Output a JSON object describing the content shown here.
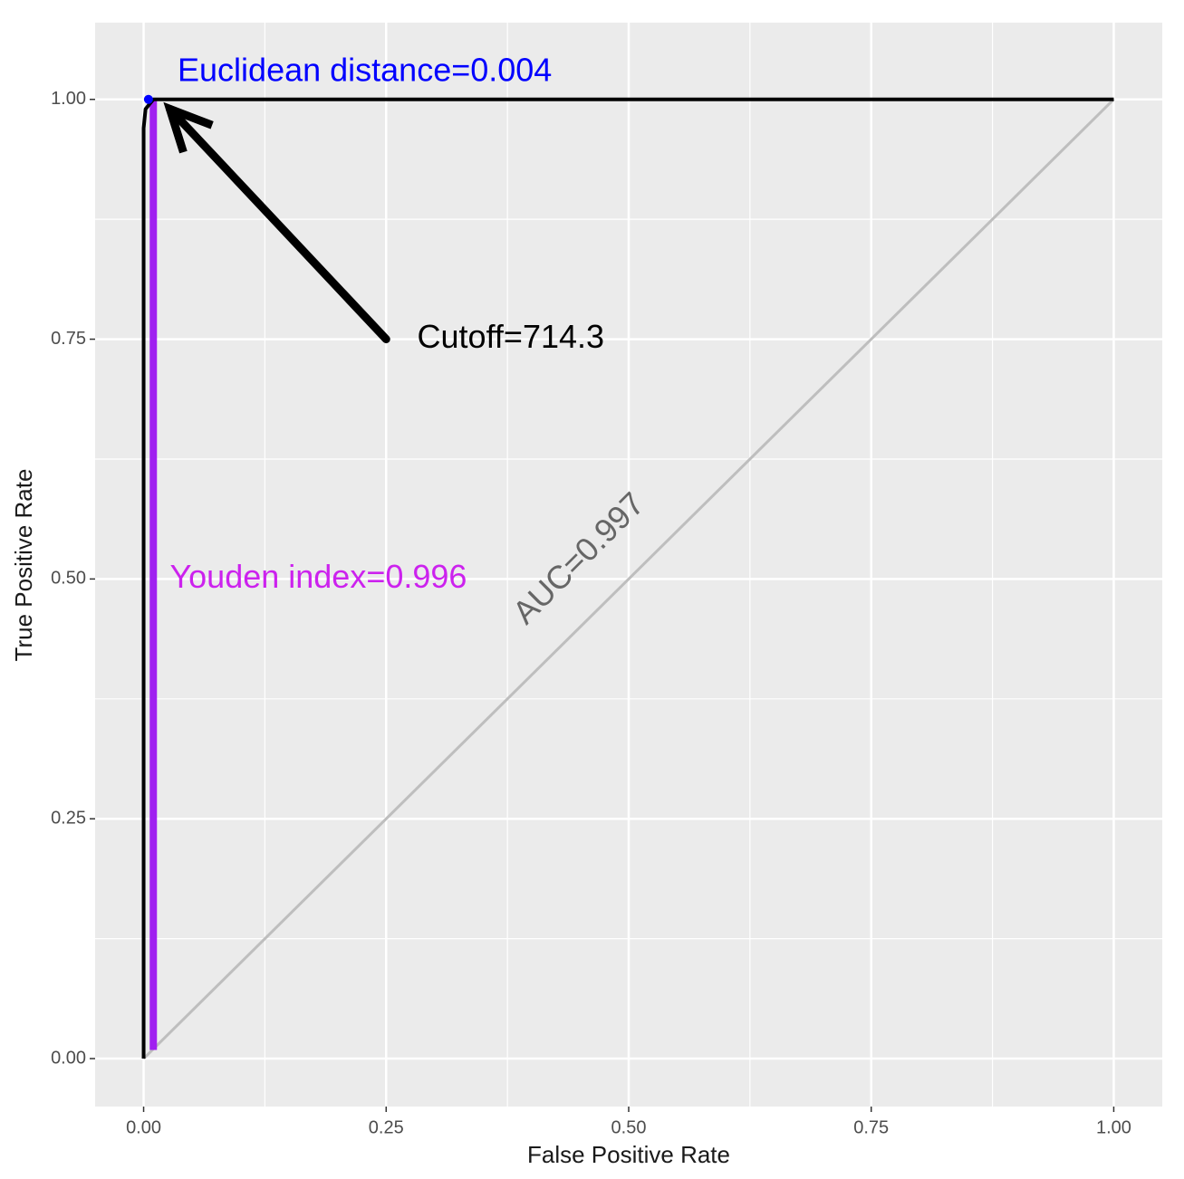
{
  "chart_data": {
    "type": "line",
    "x_label": "False Positive Rate",
    "y_label": "True Positive Rate",
    "xlim": [
      -0.05,
      1.05
    ],
    "ylim": [
      -0.05,
      1.08
    ],
    "xticks": [
      {
        "value": 0,
        "label": "0.00"
      },
      {
        "value": 0.25,
        "label": "0.25"
      },
      {
        "value": 0.5,
        "label": "0.50"
      },
      {
        "value": 0.75,
        "label": "0.75"
      },
      {
        "value": 1,
        "label": "1.00"
      }
    ],
    "yticks": [
      {
        "value": 0,
        "label": "0.00"
      },
      {
        "value": 0.25,
        "label": "0.25"
      },
      {
        "value": 0.5,
        "label": "0.50"
      },
      {
        "value": 0.75,
        "label": "0.75"
      },
      {
        "value": 1,
        "label": "1.00"
      }
    ],
    "grid": true,
    "series": [
      {
        "color": "#000000",
        "x": [
          0,
          0,
          0.002,
          0.01,
          1
        ],
        "values": [
          0,
          0.97,
          0.99,
          1,
          1
        ]
      },
      {
        "color": "#bebebe",
        "x": [
          0,
          1
        ],
        "values": [
          0,
          1
        ]
      },
      {
        "color": "#a020f0",
        "x": [
          0.01,
          0.01
        ],
        "values": [
          0.009,
          1
        ]
      }
    ],
    "points": [
      {
        "x": 0.005,
        "y": 1,
        "color": "#0000ff"
      }
    ],
    "arrow": {
      "x": [
        0.25,
        0.027
      ],
      "y": [
        0.75,
        0.99
      ],
      "color": "#000000"
    },
    "annotations": [
      {
        "text": "Euclidean distance=0.004",
        "x": 0.035,
        "y": 1.028,
        "color": "#0000ff"
      },
      {
        "text": "Cutoff=714.3",
        "x": 0.282,
        "y": 0.75,
        "color": "#000000"
      },
      {
        "text": "Youden index=0.996",
        "x": 0.027,
        "y": 0.5,
        "color": "#cc22ee"
      },
      {
        "text": "AUC=0.997",
        "x": 0.45,
        "y": 0.52,
        "color": "#666666",
        "angle": 45
      }
    ]
  }
}
